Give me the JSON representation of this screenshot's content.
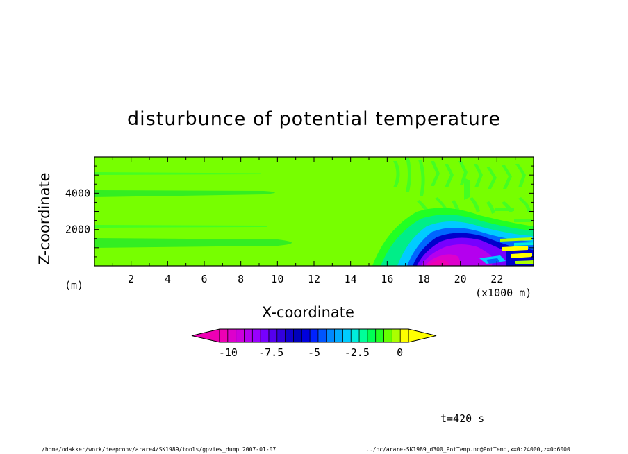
{
  "chart_data": {
    "type": "heatmap",
    "title": "disturbunce of potential temperature",
    "xlabel": "X-coordinate",
    "ylabel": "Z-coordinate",
    "x_unit": "(x1000 m)",
    "y_unit": "(m)",
    "xlim": [
      0,
      24
    ],
    "ylim": [
      0,
      6000
    ],
    "x_ticks": [
      "2",
      "4",
      "6",
      "8",
      "10",
      "12",
      "14",
      "16",
      "18",
      "20",
      "22"
    ],
    "y_ticks": [
      "2000",
      "4000"
    ],
    "colorbar": {
      "min": -10.5,
      "max": 0.5,
      "step": 0.5,
      "tick_labels": [
        "-10",
        "-7.5",
        "-5",
        "-2.5",
        "0"
      ],
      "colors": [
        "#ee00b4",
        "#dd00cc",
        "#cc00dd",
        "#b400ee",
        "#9900ff",
        "#7700ff",
        "#5500ee",
        "#3300dd",
        "#1100cc",
        "#0000bb",
        "#0000dd",
        "#0022ff",
        "#0055ff",
        "#0088ff",
        "#00aaff",
        "#00ccff",
        "#00eedd",
        "#00ff99",
        "#00ff55",
        "#22ff22",
        "#66ff00",
        "#aaff00",
        "#ffff00"
      ],
      "extend": "both"
    },
    "background_color": "#77ff00",
    "features": [
      {
        "label": "cold pool",
        "x_range_km": [
          17.2,
          24
        ],
        "z_max_m": 1800,
        "min_value": -10
      }
    ]
  },
  "annotations": {
    "time": "t=420 s",
    "footer_left": "/home/odakker/work/deepconv/arare4/SK1989/tools/gpview_dump  2007-01-07",
    "footer_right": "../nc/arare-SK1989_d300_PotTemp.nc@PotTemp,x=0:24000,z=0:6000"
  }
}
